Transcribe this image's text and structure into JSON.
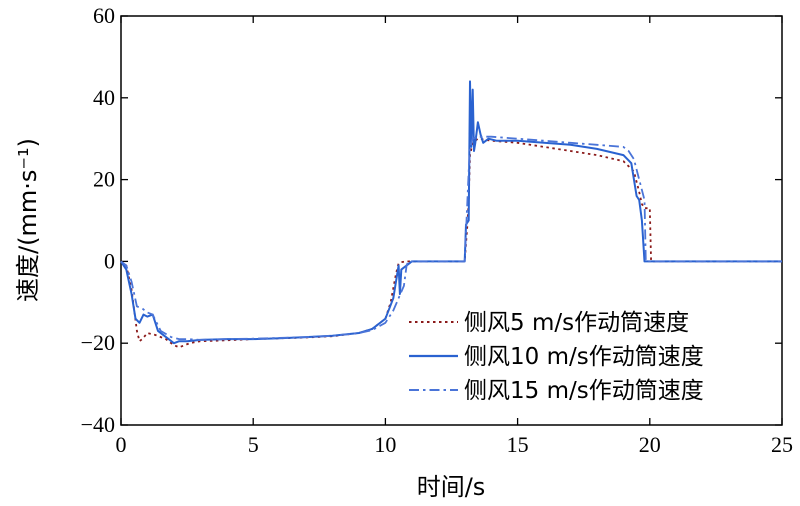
{
  "chart_data": {
    "type": "line",
    "xlabel": "时间/s",
    "ylabel": "速度/(mm·s⁻¹)",
    "xlim": [
      0,
      25
    ],
    "ylim": [
      -40,
      60
    ],
    "xticks": [
      0,
      5,
      10,
      15,
      20,
      25
    ],
    "yticks": [
      -40,
      -20,
      0,
      20,
      40,
      60
    ],
    "xtick_labels": [
      "0",
      "5",
      "10",
      "15",
      "20",
      "25"
    ],
    "ytick_labels": [
      "−40",
      "−20",
      "0",
      "20",
      "40",
      "60"
    ],
    "grid": false,
    "legend_position": "right-middle",
    "series": [
      {
        "name": "侧风5 m/s作动筒速度",
        "color": "#8b1a1a",
        "style": "dotted",
        "x": [
          0,
          0.2,
          0.4,
          0.6,
          0.7,
          0.8,
          1.0,
          1.3,
          1.7,
          2.0,
          2.2,
          2.6,
          3.0,
          4.0,
          5.0,
          6.0,
          7.0,
          8.0,
          9.0,
          9.5,
          10.0,
          10.2,
          10.4,
          10.5,
          10.6,
          10.8,
          11.0,
          12.0,
          13.0,
          13.1,
          13.15,
          13.2,
          13.3,
          13.5,
          14.0,
          15.0,
          16.0,
          17.0,
          18.0,
          19.0,
          19.4,
          19.6,
          19.7,
          19.8,
          20.0,
          20.05,
          21.0,
          25.0
        ],
        "y": [
          0,
          -1,
          -7,
          -17,
          -19.5,
          -19,
          -17.5,
          -18,
          -19,
          -20.5,
          -21,
          -20,
          -19.5,
          -19.3,
          -19,
          -18.8,
          -18.6,
          -18.3,
          -17.5,
          -16.5,
          -14,
          -10,
          -3,
          -0.5,
          -0.2,
          0,
          0,
          0,
          0,
          9,
          15,
          26,
          29,
          30,
          29.5,
          29,
          28,
          27,
          26,
          24.5,
          22,
          17,
          14,
          13,
          13,
          0,
          0,
          0
        ]
      },
      {
        "name": "侧风10 m/s作动筒速度",
        "color": "#2a62d0",
        "style": "solid",
        "x": [
          0,
          0.2,
          0.4,
          0.55,
          0.7,
          0.85,
          1.0,
          1.2,
          1.4,
          1.8,
          2.0,
          2.2,
          2.5,
          3.0,
          4.0,
          5.0,
          6.0,
          7.0,
          8.0,
          9.0,
          9.5,
          10.0,
          10.3,
          10.5,
          10.55,
          10.6,
          11.0,
          12.0,
          13.0,
          13.05,
          13.15,
          13.2,
          13.25,
          13.3,
          13.35,
          13.4,
          13.5,
          13.6,
          13.7,
          13.9,
          14.2,
          15.0,
          16.0,
          17.0,
          18.0,
          19.0,
          19.3,
          19.5,
          19.6,
          19.7,
          19.8,
          20.0,
          25.0
        ],
        "y": [
          0,
          -2,
          -8,
          -14,
          -15,
          -13,
          -13.5,
          -13,
          -17,
          -19,
          -20,
          -19.5,
          -19.5,
          -19.2,
          -19,
          -19,
          -18.8,
          -18.5,
          -18.2,
          -17.5,
          -16.5,
          -14,
          -9,
          -1,
          -8,
          -2,
          0,
          0,
          0,
          9,
          10,
          44,
          28,
          42,
          27,
          29,
          34,
          31,
          29,
          30,
          29.5,
          29.5,
          29,
          28.5,
          27.5,
          26,
          24,
          16,
          15,
          10,
          0,
          0,
          0
        ]
      },
      {
        "name": "侧风15 m/s作动筒速度",
        "color": "#4a74d8",
        "style": "dashdot",
        "x": [
          0,
          0.2,
          0.4,
          0.6,
          0.8,
          1.0,
          1.2,
          1.5,
          1.9,
          2.2,
          2.5,
          3.0,
          4.0,
          5.0,
          6.0,
          7.0,
          8.0,
          9.0,
          9.5,
          10.0,
          10.3,
          10.5,
          10.7,
          10.8,
          10.85,
          10.9,
          11.0,
          12.0,
          13.0,
          13.15,
          13.2,
          13.3,
          13.5,
          14.0,
          15.0,
          16.0,
          17.0,
          18.0,
          19.0,
          19.2,
          19.4,
          19.6,
          19.8,
          19.85,
          20.0,
          25.0
        ],
        "y": [
          0,
          -1,
          -5,
          -11,
          -11.5,
          -12.5,
          -13,
          -17,
          -18.5,
          -19,
          -19,
          -19.2,
          -19,
          -18.9,
          -18.7,
          -18.5,
          -18.2,
          -17.5,
          -16.8,
          -15,
          -12,
          -9,
          -6,
          -1,
          -0.2,
          0,
          0,
          0,
          0,
          22,
          28,
          30,
          30.5,
          30.5,
          30,
          29.5,
          29,
          28.5,
          28,
          27,
          25,
          20,
          15,
          0,
          0,
          0
        ]
      }
    ]
  }
}
